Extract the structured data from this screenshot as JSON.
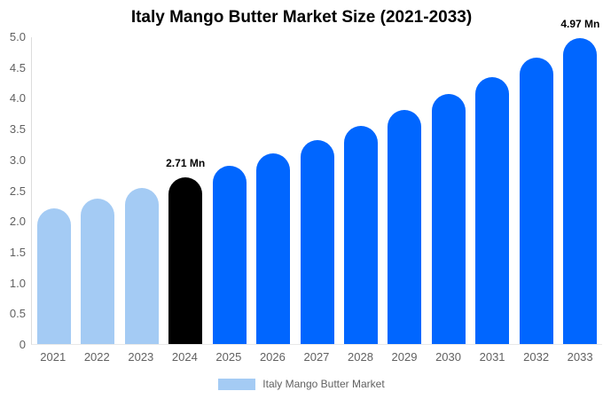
{
  "colors": {
    "historical": "#A4CBF4",
    "base_year": "#000000",
    "forecast": "#0066FF",
    "axis_line": "#dcdcdc",
    "baseline": "#e9e9e9",
    "axis_text": "#616161",
    "title_text": "#000000"
  },
  "legend": {
    "label": "Italy Mango Butter Market",
    "swatch_color": "#A4CBF4"
  },
  "chart_data": {
    "type": "bar",
    "title": "Italy Mango Butter Market Size (2021-2033)",
    "unit": "Mn",
    "categories": [
      "2021",
      "2022",
      "2023",
      "2024",
      "2025",
      "2026",
      "2027",
      "2028",
      "2029",
      "2030",
      "2031",
      "2032",
      "2033"
    ],
    "values": [
      2.21,
      2.37,
      2.53,
      2.71,
      2.9,
      3.1,
      3.32,
      3.55,
      3.8,
      4.06,
      4.34,
      4.65,
      4.97
    ],
    "color_roles": [
      "historical",
      "historical",
      "historical",
      "base_year",
      "forecast",
      "forecast",
      "forecast",
      "forecast",
      "forecast",
      "forecast",
      "forecast",
      "forecast",
      "forecast"
    ],
    "annotations": [
      {
        "index": 3,
        "text": "2.71 Mn"
      },
      {
        "index": 12,
        "text": "4.97 Mn"
      }
    ],
    "xlabel": "",
    "ylabel": "",
    "ylim": [
      0,
      5
    ],
    "ytick_step": 0.5,
    "ytick_labels": [
      "5.0",
      "4.5",
      "4.0",
      "3.5",
      "3.0",
      "2.5",
      "2.0",
      "1.5",
      "1.0",
      "0.5",
      "0"
    ],
    "grid": false,
    "legend_position": "bottom"
  }
}
